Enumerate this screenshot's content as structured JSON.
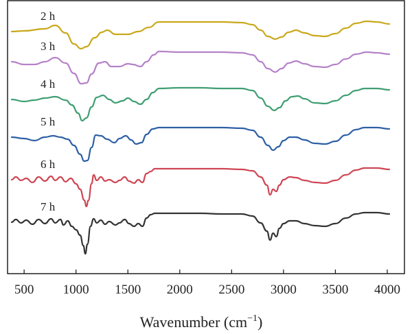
{
  "chart_data": {
    "type": "line",
    "title": "",
    "xlabel": "Wavenumber (cm",
    "xlabel_sup": "−1",
    "xlabel_close": ")",
    "ylabel": "",
    "xlim": [
      380,
      4020
    ],
    "x_ticks": [
      500,
      1000,
      1500,
      2000,
      2500,
      3000,
      3500,
      4000
    ],
    "x_tick_labels": [
      "500",
      "1000",
      "1500",
      "2000",
      "2500",
      "3000",
      "3500",
      "4000"
    ],
    "grid": false,
    "legend": "inline labels",
    "series": [
      {
        "name": "2 h",
        "color": "#c9a81c",
        "points": [
          [
            380,
            46
          ],
          [
            500,
            45
          ],
          [
            700,
            42
          ],
          [
            800,
            37
          ],
          [
            900,
            48
          ],
          [
            980,
            64
          ],
          [
            1050,
            71
          ],
          [
            1100,
            68
          ],
          [
            1180,
            55
          ],
          [
            1250,
            47
          ],
          [
            1300,
            44
          ],
          [
            1380,
            50
          ],
          [
            1500,
            50
          ],
          [
            1600,
            46
          ],
          [
            1700,
            40
          ],
          [
            1800,
            32
          ],
          [
            1900,
            32
          ],
          [
            2000,
            32
          ],
          [
            2200,
            32
          ],
          [
            2400,
            32
          ],
          [
            2600,
            33
          ],
          [
            2700,
            36
          ],
          [
            2780,
            44
          ],
          [
            2850,
            53
          ],
          [
            2920,
            57
          ],
          [
            2980,
            54
          ],
          [
            3050,
            47
          ],
          [
            3120,
            44
          ],
          [
            3200,
            48
          ],
          [
            3300,
            52
          ],
          [
            3400,
            53
          ],
          [
            3500,
            49
          ],
          [
            3600,
            41
          ],
          [
            3700,
            34
          ],
          [
            3800,
            31
          ],
          [
            3900,
            32
          ],
          [
            4020,
            35
          ]
        ]
      },
      {
        "name": "3 h",
        "color": "#b582c8",
        "points": [
          [
            380,
            90
          ],
          [
            500,
            94
          ],
          [
            600,
            94
          ],
          [
            700,
            90
          ],
          [
            800,
            84
          ],
          [
            900,
            92
          ],
          [
            980,
            107
          ],
          [
            1050,
            122
          ],
          [
            1100,
            121
          ],
          [
            1150,
            108
          ],
          [
            1220,
            92
          ],
          [
            1280,
            90
          ],
          [
            1340,
            97
          ],
          [
            1420,
            97
          ],
          [
            1500,
            93
          ],
          [
            1550,
            94
          ],
          [
            1620,
            97
          ],
          [
            1680,
            90
          ],
          [
            1750,
            80
          ],
          [
            1800,
            75
          ],
          [
            2000,
            76
          ],
          [
            2200,
            76
          ],
          [
            2400,
            76
          ],
          [
            2600,
            77
          ],
          [
            2700,
            80
          ],
          [
            2780,
            90
          ],
          [
            2850,
            100
          ],
          [
            2920,
            105
          ],
          [
            2980,
            100
          ],
          [
            3050,
            92
          ],
          [
            3120,
            89
          ],
          [
            3200,
            93
          ],
          [
            3300,
            97
          ],
          [
            3400,
            98
          ],
          [
            3500,
            94
          ],
          [
            3600,
            86
          ],
          [
            3700,
            79
          ],
          [
            3800,
            76
          ],
          [
            3900,
            77
          ],
          [
            4020,
            79
          ]
        ]
      },
      {
        "name": "4 h",
        "color": "#3f9e73",
        "points": [
          [
            380,
            145
          ],
          [
            500,
            148
          ],
          [
            600,
            146
          ],
          [
            700,
            143
          ],
          [
            800,
            141
          ],
          [
            900,
            146
          ],
          [
            960,
            153
          ],
          [
            1020,
            165
          ],
          [
            1060,
            176
          ],
          [
            1100,
            172
          ],
          [
            1150,
            156
          ],
          [
            1200,
            142
          ],
          [
            1260,
            139
          ],
          [
            1320,
            145
          ],
          [
            1380,
            150
          ],
          [
            1450,
            147
          ],
          [
            1500,
            143
          ],
          [
            1560,
            148
          ],
          [
            1620,
            152
          ],
          [
            1680,
            145
          ],
          [
            1740,
            135
          ],
          [
            1800,
            129
          ],
          [
            2000,
            128
          ],
          [
            2200,
            128
          ],
          [
            2400,
            129
          ],
          [
            2600,
            129
          ],
          [
            2700,
            132
          ],
          [
            2780,
            143
          ],
          [
            2850,
            155
          ],
          [
            2910,
            161
          ],
          [
            2960,
            157
          ],
          [
            3020,
            147
          ],
          [
            3080,
            141
          ],
          [
            3140,
            140
          ],
          [
            3200,
            144
          ],
          [
            3300,
            150
          ],
          [
            3400,
            151
          ],
          [
            3500,
            147
          ],
          [
            3600,
            139
          ],
          [
            3700,
            132
          ],
          [
            3780,
            129
          ],
          [
            3900,
            129
          ],
          [
            4020,
            131
          ]
        ]
      },
      {
        "name": "5 h",
        "color": "#2d5fa5",
        "points": [
          [
            380,
            200
          ],
          [
            500,
            202
          ],
          [
            600,
            205
          ],
          [
            700,
            200
          ],
          [
            780,
            198
          ],
          [
            850,
            200
          ],
          [
            920,
            203
          ],
          [
            980,
            212
          ],
          [
            1040,
            225
          ],
          [
            1080,
            235
          ],
          [
            1110,
            234
          ],
          [
            1150,
            215
          ],
          [
            1190,
            197
          ],
          [
            1240,
            198
          ],
          [
            1300,
            203
          ],
          [
            1370,
            208
          ],
          [
            1420,
            202
          ],
          [
            1480,
            198
          ],
          [
            1530,
            204
          ],
          [
            1580,
            210
          ],
          [
            1630,
            208
          ],
          [
            1680,
            196
          ],
          [
            1740,
            188
          ],
          [
            1800,
            186
          ],
          [
            2000,
            186
          ],
          [
            2200,
            186
          ],
          [
            2400,
            186
          ],
          [
            2600,
            187
          ],
          [
            2700,
            190
          ],
          [
            2780,
            200
          ],
          [
            2850,
            212
          ],
          [
            2900,
            219
          ],
          [
            2950,
            214
          ],
          [
            3000,
            205
          ],
          [
            3060,
            200
          ],
          [
            3120,
            200
          ],
          [
            3200,
            204
          ],
          [
            3300,
            209
          ],
          [
            3400,
            210
          ],
          [
            3500,
            206
          ],
          [
            3600,
            197
          ],
          [
            3700,
            189
          ],
          [
            3780,
            186
          ],
          [
            3900,
            186
          ],
          [
            4020,
            188
          ]
        ]
      },
      {
        "name": "6 h",
        "color": "#cf4553",
        "points": [
          [
            380,
            262
          ],
          [
            420,
            258
          ],
          [
            470,
            263
          ],
          [
            520,
            260
          ],
          [
            580,
            266
          ],
          [
            640,
            258
          ],
          [
            700,
            264
          ],
          [
            760,
            257
          ],
          [
            800,
            263
          ],
          [
            850,
            258
          ],
          [
            900,
            265
          ],
          [
            950,
            260
          ],
          [
            1000,
            268
          ],
          [
            1040,
            276
          ],
          [
            1080,
            292
          ],
          [
            1100,
            301
          ],
          [
            1120,
            292
          ],
          [
            1150,
            268
          ],
          [
            1170,
            255
          ],
          [
            1200,
            263
          ],
          [
            1240,
            258
          ],
          [
            1280,
            264
          ],
          [
            1320,
            262
          ],
          [
            1380,
            266
          ],
          [
            1420,
            263
          ],
          [
            1470,
            258
          ],
          [
            1510,
            264
          ],
          [
            1560,
            267
          ],
          [
            1600,
            262
          ],
          [
            1640,
            266
          ],
          [
            1680,
            253
          ],
          [
            1720,
            250
          ],
          [
            1760,
            246
          ],
          [
            1800,
            246
          ],
          [
            2000,
            246
          ],
          [
            2200,
            246
          ],
          [
            2400,
            246
          ],
          [
            2600,
            247
          ],
          [
            2700,
            249
          ],
          [
            2780,
            258
          ],
          [
            2840,
            270
          ],
          [
            2870,
            284
          ],
          [
            2900,
            276
          ],
          [
            2930,
            279
          ],
          [
            2960,
            270
          ],
          [
            3000,
            262
          ],
          [
            3060,
            258
          ],
          [
            3120,
            259
          ],
          [
            3200,
            263
          ],
          [
            3300,
            266
          ],
          [
            3400,
            267
          ],
          [
            3500,
            263
          ],
          [
            3600,
            255
          ],
          [
            3700,
            248
          ],
          [
            3780,
            245
          ],
          [
            3900,
            245
          ],
          [
            4020,
            247
          ]
        ]
      },
      {
        "name": "7 h",
        "color": "#333333",
        "points": [
          [
            380,
            324
          ],
          [
            420,
            320
          ],
          [
            470,
            325
          ],
          [
            520,
            321
          ],
          [
            580,
            327
          ],
          [
            640,
            320
          ],
          [
            700,
            326
          ],
          [
            760,
            319
          ],
          [
            800,
            325
          ],
          [
            850,
            320
          ],
          [
            880,
            328
          ],
          [
            920,
            322
          ],
          [
            960,
            330
          ],
          [
            1000,
            335
          ],
          [
            1040,
            343
          ],
          [
            1070,
            358
          ],
          [
            1090,
            370
          ],
          [
            1110,
            356
          ],
          [
            1140,
            330
          ],
          [
            1170,
            319
          ],
          [
            1200,
            325
          ],
          [
            1240,
            321
          ],
          [
            1280,
            327
          ],
          [
            1320,
            323
          ],
          [
            1380,
            328
          ],
          [
            1420,
            325
          ],
          [
            1470,
            320
          ],
          [
            1510,
            326
          ],
          [
            1560,
            330
          ],
          [
            1600,
            326
          ],
          [
            1640,
            330
          ],
          [
            1680,
            318
          ],
          [
            1720,
            313
          ],
          [
            1760,
            311
          ],
          [
            1800,
            311
          ],
          [
            2000,
            311
          ],
          [
            2200,
            311
          ],
          [
            2400,
            312
          ],
          [
            2600,
            312
          ],
          [
            2700,
            315
          ],
          [
            2780,
            325
          ],
          [
            2840,
            337
          ],
          [
            2870,
            350
          ],
          [
            2900,
            340
          ],
          [
            2930,
            345
          ],
          [
            2960,
            333
          ],
          [
            3000,
            326
          ],
          [
            3060,
            322
          ],
          [
            3120,
            322
          ],
          [
            3200,
            326
          ],
          [
            3300,
            329
          ],
          [
            3400,
            330
          ],
          [
            3500,
            326
          ],
          [
            3600,
            318
          ],
          [
            3700,
            312
          ],
          [
            3780,
            310
          ],
          [
            3900,
            310
          ],
          [
            4020,
            312
          ]
        ]
      }
    ]
  }
}
